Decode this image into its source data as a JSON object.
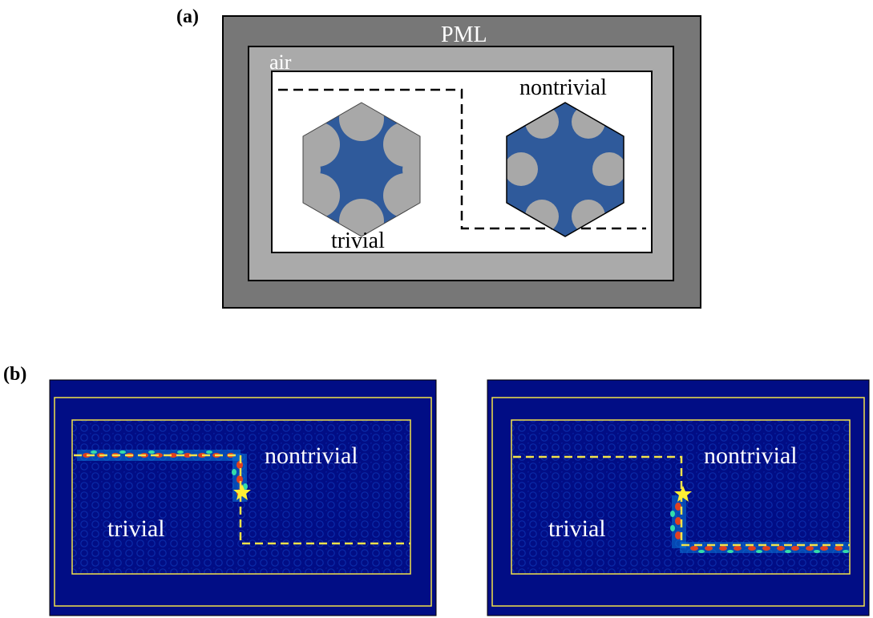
{
  "panel_a": {
    "label": "(a)",
    "pml_label": "PML",
    "air_label": "air",
    "trivial_label": "trivial",
    "nontrivial_label": "nontrivial"
  },
  "panel_b": {
    "label": "(b)",
    "left": {
      "nontrivial_label": "nontrivial",
      "trivial_label": "trivial"
    },
    "right": {
      "nontrivial_label": "nontrivial",
      "trivial_label": "trivial"
    }
  },
  "colors": {
    "pml": "#777777",
    "air": "#aaaaaa",
    "hex_blue": "#2f5a9b",
    "rod_gray": "#a8a8a8",
    "field_bg": "#010d85",
    "interface_line": "#f2e24a",
    "source_star": "#ffee33"
  }
}
